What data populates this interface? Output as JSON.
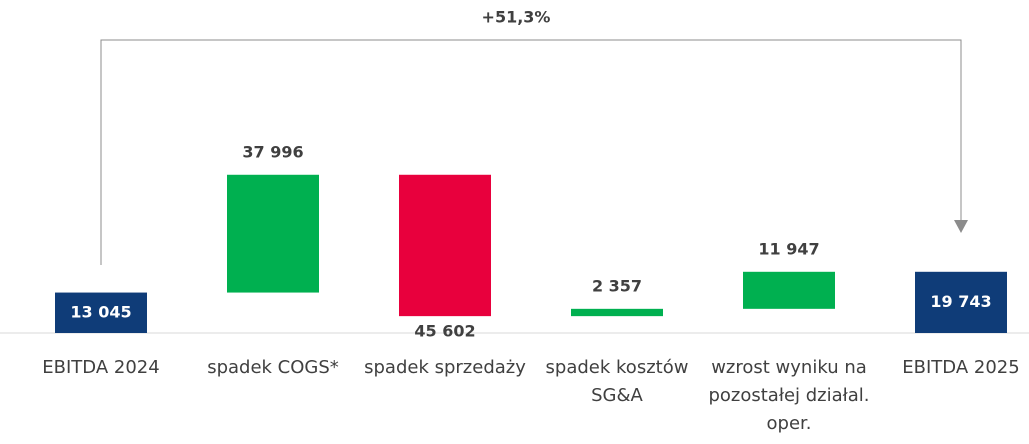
{
  "chart_data": {
    "type": "waterfall",
    "categories": [
      "EBITDA 2024",
      "spadek COGS*",
      "spadek sprzedaży",
      "spadek kosztów SG&A",
      "wzrost wyniku na pozostałej działal. oper.",
      "EBITDA 2025"
    ],
    "values": [
      13045,
      37996,
      -45602,
      2357,
      11947,
      19743
    ],
    "value_labels": [
      "13 045",
      "37 996",
      "45 602",
      "2 357",
      "11 947",
      "19 743"
    ],
    "total_color": "#0f3c78",
    "increase_color": "#00b050",
    "decrease_color": "#e8003d",
    "ylim": [
      0,
      70000
    ],
    "annotation": "+51,3%"
  }
}
